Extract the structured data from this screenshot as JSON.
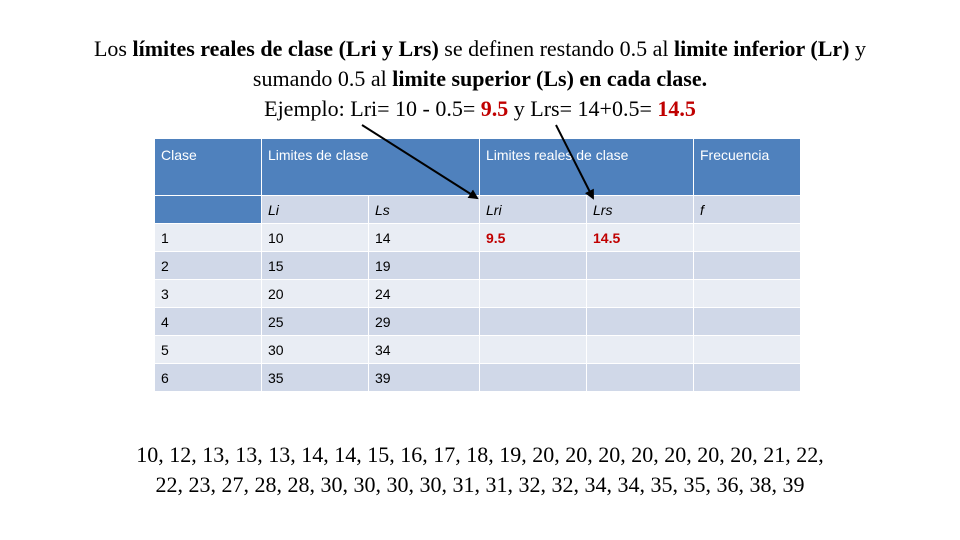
{
  "title": {
    "p1": "Los ",
    "b1": "límites reales de clase (Lri y Lrs)",
    "p2": " se definen restando 0.5 al ",
    "b2": "limite inferior (Lr)",
    "p3": " y sumando 0.5 al ",
    "b3": "limite superior (Ls)",
    "p4": " en cada clase.",
    "ex1": "Ejemplo: Lri= 10 - 0.5= ",
    "exv1": "9.5",
    "ex2": " y Lrs= 14+0.5= ",
    "exv2": "14.5"
  },
  "table": {
    "headers": [
      "Clase",
      "Limites de clase",
      "Limites reales de clase",
      "Frecuencia"
    ],
    "subheaders": [
      "Li",
      "Ls",
      "Lri",
      "Lrs",
      "f"
    ],
    "rows": [
      {
        "clase": "1",
        "li": "10",
        "ls": "14",
        "lri": "9.5",
        "lrs": "14.5"
      },
      {
        "clase": "2",
        "li": "15",
        "ls": "19",
        "lri": "",
        "lrs": ""
      },
      {
        "clase": "3",
        "li": "20",
        "ls": "24",
        "lri": "",
        "lrs": ""
      },
      {
        "clase": "4",
        "li": "25",
        "ls": "29",
        "lri": "",
        "lrs": ""
      },
      {
        "clase": "5",
        "li": "30",
        "ls": "34",
        "lri": "",
        "lrs": ""
      },
      {
        "clase": "6",
        "li": "35",
        "ls": "39",
        "lri": "",
        "lrs": ""
      }
    ]
  },
  "data_list": {
    "line1": "10, 12, 13, 13, 13, 14, 14, 15, 16, 17, 18, 19, 20, 20, 20, 20, 20, 20, 20, 21, 22,",
    "line2": "22, 23, 27, 28, 28, 30, 30, 30, 30, 31, 31, 32, 32, 34, 34, 35, 35, 36, 38, 39"
  },
  "colors": {
    "header": "#4f81bd",
    "band": "#d0d8e8",
    "band_alt": "#e9edf4",
    "accent": "#c00000"
  }
}
